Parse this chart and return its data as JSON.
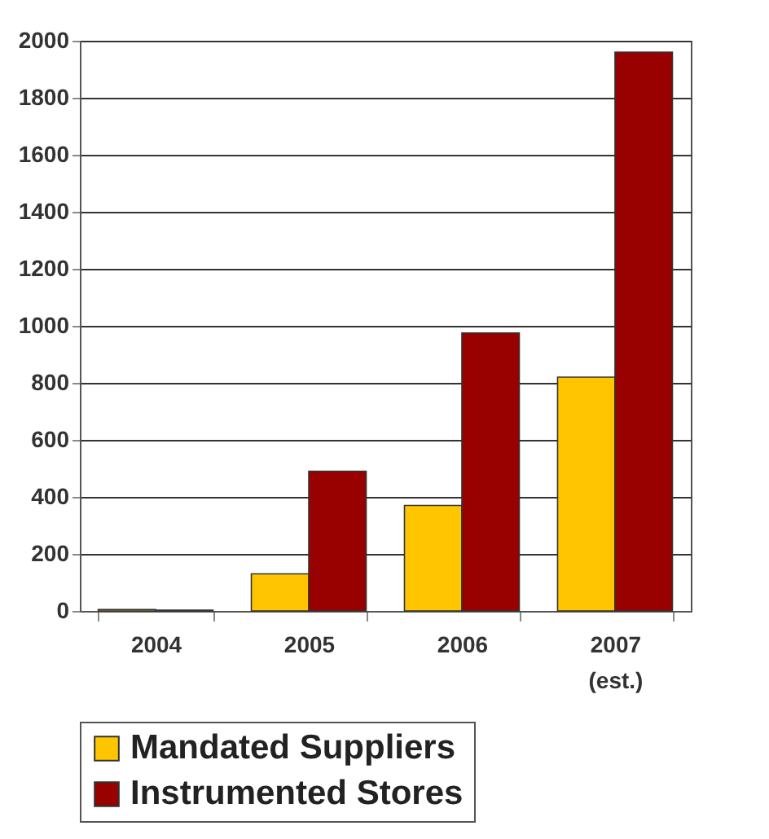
{
  "chart_data": {
    "type": "bar",
    "categories": [
      "2004",
      "2005",
      "2006",
      "2007\n(est.)"
    ],
    "series": [
      {
        "name": "Mandated Suppliers",
        "color": "#ffc600",
        "values": [
          5,
          130,
          370,
          820
        ]
      },
      {
        "name": "Instrumented Stores",
        "color": "#990000",
        "values": [
          3,
          490,
          975,
          1960
        ]
      }
    ],
    "ylim": [
      0,
      2000
    ],
    "yticks": [
      0,
      200,
      400,
      600,
      800,
      1000,
      1200,
      1400,
      1600,
      1800,
      2000
    ],
    "grid": "y",
    "legend": "bottom"
  }
}
